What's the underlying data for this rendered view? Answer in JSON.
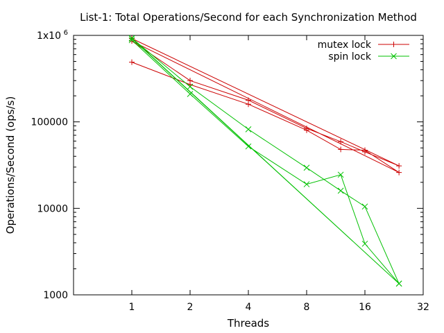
{
  "chart_data": {
    "type": "line",
    "title": "List-1: Total Operations/Second for each Synchronization Method",
    "xlabel": "Threads",
    "ylabel": "Operations/Second (ops/s)",
    "x_scale": "log2",
    "y_scale": "log10",
    "xlim": [
      0.5,
      32
    ],
    "ylim": [
      1000,
      1000000
    ],
    "x_ticks": [
      1,
      2,
      4,
      8,
      16,
      32
    ],
    "x_tick_labels": [
      "1",
      "2",
      "4",
      "8",
      "16",
      "32"
    ],
    "y_ticks": [
      1000,
      10000,
      100000,
      1000000
    ],
    "y_tick_labels": [
      "1000",
      "10000",
      "100000",
      "1x10"
    ],
    "y_top_exponent": "6",
    "legend_position": "top-right",
    "grid": false,
    "series": [
      {
        "name": "mutex lock",
        "color": "#cc0000",
        "marker": "plus",
        "x": [
          1,
          2,
          4,
          8,
          12,
          16,
          24,
          1,
          2,
          4,
          8,
          12,
          16,
          24,
          1
        ],
        "y": [
          490000,
          270000,
          160000,
          80000,
          48000,
          47000,
          26000,
          860000,
          300000,
          178000,
          84000,
          59000,
          45000,
          31000,
          920000
        ]
      },
      {
        "name": "spin lock",
        "color": "#00c000",
        "marker": "x",
        "x": [
          1,
          2,
          4,
          8,
          12,
          16,
          24,
          1,
          2,
          4,
          8,
          12,
          16,
          24,
          1
        ],
        "y": [
          880000,
          210000,
          52000,
          19000,
          24500,
          3900,
          1350,
          930000,
          255000,
          82000,
          29500,
          16000,
          10500,
          1350,
          920000
        ]
      }
    ]
  }
}
